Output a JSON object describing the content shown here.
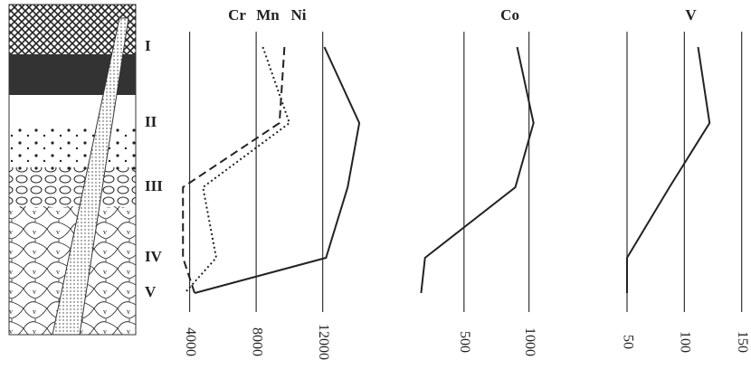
{
  "chart_data": [
    {
      "type": "line",
      "categories": [
        "I",
        "II",
        "III",
        "IV",
        "V"
      ],
      "series": [
        {
          "name": "Cr",
          "color": "#222",
          "style": "dotted",
          "values": [
            8400,
            10000,
            4800,
            5600,
            3700
          ]
        },
        {
          "name": "Mn",
          "color": "#222",
          "style": "dashed",
          "values": [
            9700,
            9400,
            3600,
            3600,
            4300
          ]
        },
        {
          "name": "Ni",
          "color": "#222",
          "style": "solid",
          "values": [
            12100,
            14200,
            13500,
            12200,
            4300
          ]
        }
      ],
      "xlim": [
        2500,
        15500
      ],
      "xticks": [
        4000,
        8000,
        12000
      ]
    },
    {
      "type": "line",
      "series": [
        {
          "name": "Co",
          "color": "#222",
          "style": "solid",
          "values": [
            909,
            1035,
            895,
            200,
            170
          ]
        }
      ],
      "xlim": [
        0,
        1100
      ],
      "xticks": [
        500,
        1000
      ]
    },
    {
      "type": "line",
      "series": [
        {
          "name": "V",
          "color": "#222",
          "style": "solid",
          "values": [
            112,
            122,
            87,
            50,
            50
          ]
        }
      ],
      "xlim": [
        20,
        155
      ],
      "xticks": [
        50,
        100,
        150
      ]
    }
  ]
}
